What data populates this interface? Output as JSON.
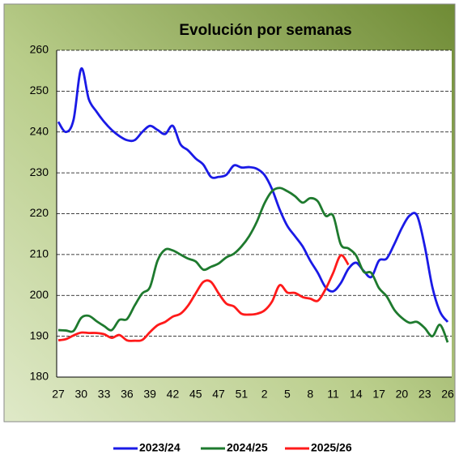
{
  "chart_data": {
    "type": "line",
    "title": "Evolución por semanas",
    "categories": [
      "27",
      null,
      null,
      "30",
      null,
      null,
      "33",
      null,
      null,
      "36",
      null,
      null,
      "39",
      null,
      null,
      "42",
      null,
      null,
      "45",
      null,
      null,
      "47",
      null,
      null,
      "51",
      null,
      null,
      "2",
      null,
      null,
      "5",
      null,
      null,
      "8",
      null,
      null,
      "11",
      null,
      null,
      "14",
      null,
      null,
      "17",
      null,
      null,
      "20",
      null,
      null,
      "23",
      null,
      null,
      "26"
    ],
    "series": [
      {
        "name": "2023/24",
        "color": "#1a1ae6",
        "values": [
          242.5,
          240,
          243,
          255.5,
          248,
          245,
          242.5,
          240.5,
          239,
          238,
          238,
          240,
          241.5,
          240.5,
          239.5,
          241.5,
          237,
          235.5,
          233.5,
          232,
          229,
          229,
          229.5,
          231.8,
          231.3,
          231.4,
          231,
          229.5,
          226,
          221,
          217,
          214.5,
          212,
          208.5,
          205.5,
          202,
          201,
          203,
          206.5,
          208,
          206,
          204.5,
          208.5,
          209,
          212.5,
          216.5,
          219.5,
          219.5,
          212,
          202,
          196,
          193.5
        ]
      },
      {
        "name": "2024/25",
        "color": "#1e7a2e",
        "values": [
          191.5,
          191.4,
          191.3,
          194.5,
          195,
          193.7,
          192.5,
          191.5,
          194,
          194.2,
          197.5,
          200.5,
          202,
          208.5,
          211.2,
          211,
          210,
          209,
          208.3,
          206.3,
          207,
          207.8,
          209.3,
          210.2,
          212,
          214.5,
          218,
          222.5,
          225.5,
          226.3,
          225.5,
          224.3,
          222.7,
          223.8,
          223,
          219.5,
          219.5,
          212.5,
          211.5,
          209.8,
          205.8,
          205.5,
          201.8,
          199.8,
          196.5,
          194.5,
          193.3,
          193.5,
          192,
          190,
          192.8,
          188.5
        ]
      },
      {
        "name": "2025/26",
        "color": "#ff1a1a",
        "values": [
          189,
          189.3,
          190.2,
          190.9,
          190.8,
          190.8,
          190.5,
          189.6,
          190.3,
          189,
          188.9,
          189.1,
          191,
          192.7,
          193.5,
          194.8,
          195.5,
          197.5,
          200.5,
          203.3,
          203.3,
          200.5,
          198,
          197.3,
          195.5,
          195.3,
          195.5,
          196.3,
          198.5,
          202.5,
          200.7,
          200.6,
          199.6,
          199.2,
          198.7,
          201.5,
          205.5,
          209.8,
          207.5,
          null,
          null,
          null,
          null,
          null,
          null,
          null,
          null,
          null,
          null,
          null,
          null,
          null
        ]
      }
    ],
    "ylim": [
      180,
      260
    ],
    "yticks": [
      180,
      190,
      200,
      210,
      220,
      230,
      240,
      250,
      260
    ],
    "grid": true,
    "legend": "bottom"
  }
}
